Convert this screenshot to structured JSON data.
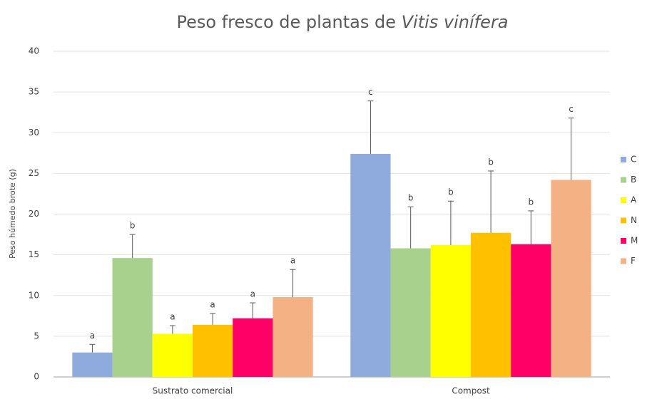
{
  "chart_data": {
    "type": "bar",
    "title": {
      "text": "Peso fresco de plantas de",
      "italic": "Vitis vinífera"
    },
    "y_label": "Peso  húmedo brote (g)",
    "categories": [
      "Sustrato comercial",
      "Compost"
    ],
    "series": [
      {
        "name": "C",
        "color": "#8faadc",
        "values": [
          3.0,
          27.4
        ],
        "errors": [
          1.0,
          6.5
        ],
        "labels": [
          "a",
          "c"
        ]
      },
      {
        "name": "B",
        "color": "#a9d18e",
        "values": [
          14.6,
          15.8
        ],
        "errors": [
          2.9,
          5.1
        ],
        "labels": [
          "b",
          "b"
        ]
      },
      {
        "name": "A",
        "color": "#ffff00",
        "values": [
          5.3,
          16.2
        ],
        "errors": [
          1.0,
          5.4
        ],
        "labels": [
          "a",
          "b"
        ]
      },
      {
        "name": "N",
        "color": "#ffc000",
        "values": [
          6.4,
          17.7
        ],
        "errors": [
          1.4,
          7.6
        ],
        "labels": [
          "a",
          "b"
        ]
      },
      {
        "name": "M",
        "color": "#ff0066",
        "values": [
          7.2,
          16.3
        ],
        "errors": [
          1.9,
          4.1
        ],
        "labels": [
          "a",
          "b"
        ]
      },
      {
        "name": "F",
        "color": "#f4b183",
        "values": [
          9.8,
          24.2
        ],
        "errors": [
          3.4,
          7.6
        ],
        "labels": [
          "a",
          "c"
        ]
      }
    ],
    "ylim": [
      0,
      40
    ],
    "yticks": [
      0,
      5,
      10,
      15,
      20,
      25,
      30,
      35,
      40
    ],
    "grid": true,
    "legend": "right"
  }
}
